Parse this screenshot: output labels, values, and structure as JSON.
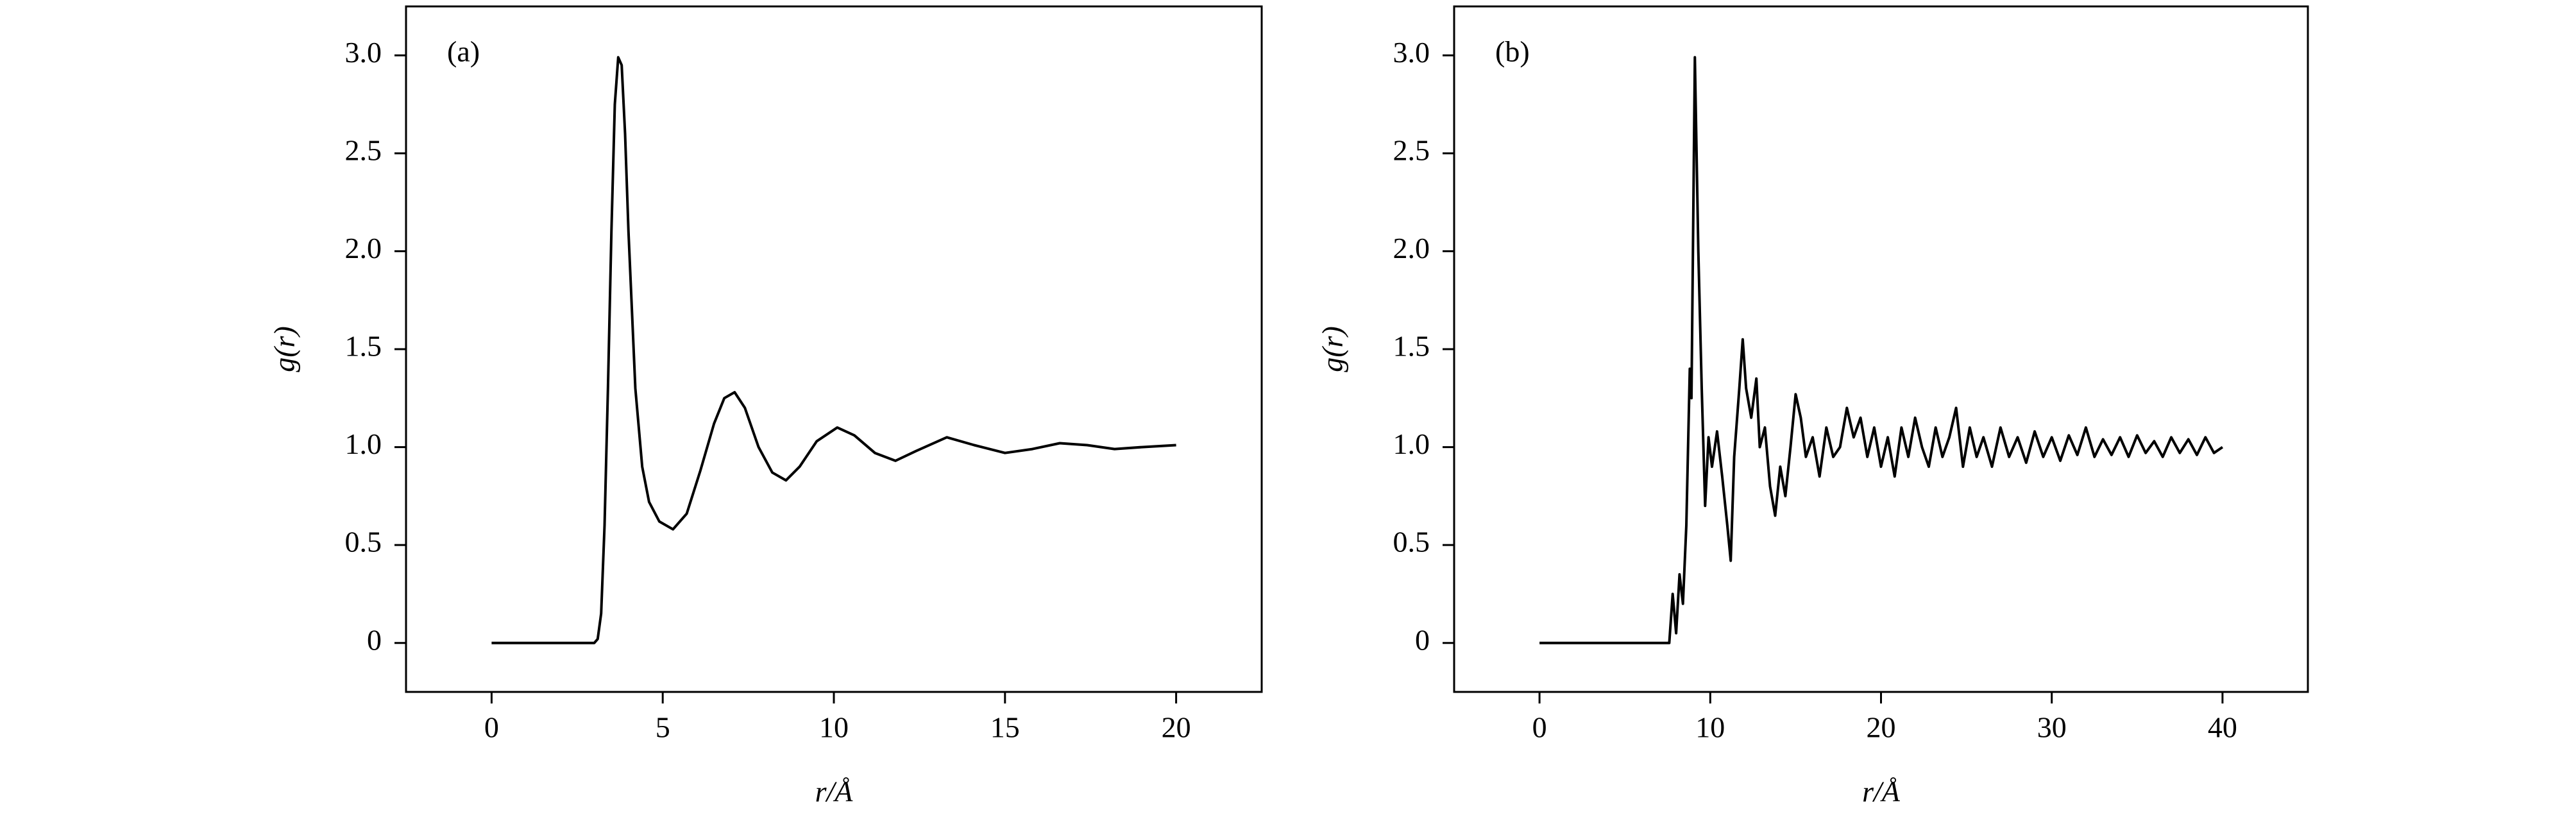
{
  "chart_data": [
    {
      "type": "line",
      "annotation": "(a)",
      "xlabel": "r/Å",
      "ylabel": "g(r)",
      "color": "#000000",
      "x": [
        0,
        3.0,
        3.1,
        3.2,
        3.3,
        3.4,
        3.5,
        3.6,
        3.7,
        3.8,
        3.9,
        4.0,
        4.2,
        4.4,
        4.6,
        4.9,
        5.3,
        5.7,
        6.1,
        6.5,
        6.8,
        7.1,
        7.4,
        7.8,
        8.2,
        8.6,
        9.0,
        9.5,
        10.1,
        10.6,
        11.2,
        11.8,
        12.4,
        13.3,
        14.1,
        15.0,
        15.8,
        16.6,
        17.4,
        18.2,
        19.0,
        20
      ],
      "values": [
        0,
        0,
        0.02,
        0.15,
        0.6,
        1.3,
        2.1,
        2.75,
        2.99,
        2.95,
        2.6,
        2.1,
        1.3,
        0.9,
        0.72,
        0.62,
        0.58,
        0.66,
        0.88,
        1.12,
        1.25,
        1.28,
        1.2,
        1.0,
        0.87,
        0.83,
        0.9,
        1.03,
        1.1,
        1.06,
        0.97,
        0.93,
        0.98,
        1.05,
        1.01,
        0.97,
        0.99,
        1.02,
        1.01,
        0.99,
        1.0,
        1.01
      ],
      "xlim": [
        -2.5,
        22.5
      ],
      "xticks": [
        0,
        5,
        10,
        15,
        20
      ],
      "ylim": [
        -0.25,
        3.25
      ],
      "yticks": [
        0,
        0.5,
        {
          "value": 1,
          "label": "1.0"
        },
        1.5,
        {
          "value": 2,
          "label": "2.0"
        },
        2.5,
        {
          "value": 3,
          "label": "3.0"
        }
      ]
    },
    {
      "type": "line",
      "annotation": "(b)",
      "xlabel": "r/Å",
      "ylabel": "g(r)",
      "color": "#000000",
      "x": [
        0,
        7.6,
        7.8,
        8.0,
        8.2,
        8.4,
        8.6,
        8.8,
        8.9,
        9.1,
        9.3,
        9.5,
        9.7,
        9.9,
        10.1,
        10.4,
        10.7,
        11.0,
        11.2,
        11.4,
        11.7,
        11.9,
        12.1,
        12.4,
        12.7,
        12.9,
        13.2,
        13.5,
        13.8,
        14.1,
        14.4,
        14.7,
        15.0,
        15.3,
        15.6,
        16.0,
        16.4,
        16.8,
        17.2,
        17.6,
        18.0,
        18.4,
        18.8,
        19.2,
        19.6,
        20.0,
        20.4,
        20.8,
        21.2,
        21.6,
        22.0,
        22.4,
        22.8,
        23.2,
        23.6,
        24.0,
        24.4,
        24.8,
        25.2,
        25.6,
        26.0,
        26.5,
        27.0,
        27.5,
        28.0,
        28.5,
        29.0,
        29.5,
        30.0,
        30.5,
        31.0,
        31.5,
        32.0,
        32.5,
        33.0,
        33.5,
        34.0,
        34.5,
        35.0,
        35.5,
        36.0,
        36.5,
        37.0,
        37.5,
        38.0,
        38.5,
        39.0,
        39.5,
        40.0
      ],
      "values": [
        0,
        0,
        0.25,
        0.05,
        0.35,
        0.2,
        0.6,
        1.4,
        1.25,
        2.99,
        2.0,
        1.3,
        0.7,
        1.05,
        0.9,
        1.08,
        0.85,
        0.6,
        0.42,
        0.95,
        1.3,
        1.55,
        1.3,
        1.15,
        1.35,
        1.0,
        1.1,
        0.8,
        0.65,
        0.9,
        0.75,
        1.0,
        1.27,
        1.15,
        0.95,
        1.05,
        0.85,
        1.1,
        0.95,
        1.0,
        1.2,
        1.05,
        1.15,
        0.95,
        1.1,
        0.9,
        1.05,
        0.85,
        1.1,
        0.95,
        1.15,
        1.0,
        0.9,
        1.1,
        0.95,
        1.05,
        1.2,
        0.9,
        1.1,
        0.95,
        1.05,
        0.9,
        1.1,
        0.95,
        1.05,
        0.92,
        1.08,
        0.95,
        1.05,
        0.93,
        1.06,
        0.96,
        1.1,
        0.95,
        1.04,
        0.96,
        1.05,
        0.95,
        1.06,
        0.97,
        1.03,
        0.95,
        1.05,
        0.97,
        1.04,
        0.96,
        1.05,
        0.97,
        1.0
      ],
      "xlim": [
        -5,
        45
      ],
      "xticks": [
        0,
        10,
        20,
        30,
        40
      ],
      "ylim": [
        -0.25,
        3.25
      ],
      "yticks": [
        0,
        0.5,
        {
          "value": 1,
          "label": "1.0"
        },
        1.5,
        {
          "value": 2,
          "label": "2.0"
        },
        2.5,
        {
          "value": 3,
          "label": "3.0"
        }
      ]
    }
  ]
}
